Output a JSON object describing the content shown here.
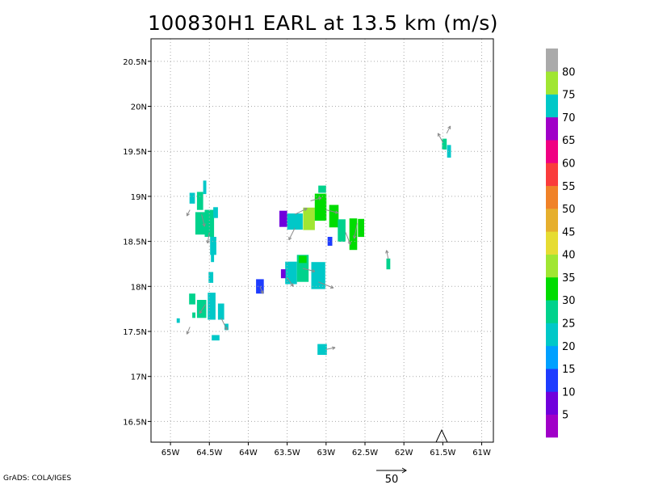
{
  "chart_data": {
    "type": "heatmap",
    "title": "100830H1 EARL at 13.5 km (m/s)",
    "xlim": [
      -65.25,
      -60.85
    ],
    "ylim": [
      16.27,
      20.75
    ],
    "x_ticks": [
      -65,
      -64.5,
      -64,
      -63.5,
      -63,
      -62.5,
      -62,
      -61.5,
      -61
    ],
    "x_tick_labels": [
      "65W",
      "64.5W",
      "64W",
      "63.5W",
      "63W",
      "62.5W",
      "62W",
      "61.5W",
      "61W"
    ],
    "y_ticks": [
      16.5,
      17,
      17.5,
      18,
      18.5,
      19,
      19.5,
      20,
      20.5
    ],
    "y_tick_labels": [
      "16.5N",
      "17N",
      "17.5N",
      "18N",
      "18.5N",
      "19N",
      "19.5N",
      "20N",
      "20.5N"
    ],
    "grid": true,
    "colorbar": {
      "labels": [
        "5",
        "10",
        "15",
        "20",
        "25",
        "30",
        "35",
        "40",
        "45",
        "50",
        "55",
        "60",
        "65",
        "70",
        "75",
        "80"
      ],
      "colors": [
        "#a000c8",
        "#7000dc",
        "#1e3cff",
        "#00a0ff",
        "#00c8c8",
        "#00d28c",
        "#00dc00",
        "#a0e632",
        "#e6dc32",
        "#e6af2d",
        "#f08228",
        "#fa3c3c",
        "#f00082",
        "#a000c8",
        "#00c8c8",
        "#a0e632",
        "#aaaaaa"
      ]
    },
    "cells": [
      {
        "lon": -64.72,
        "lat": 18.98,
        "w": 0.07,
        "h": 0.12,
        "v": 22
      },
      {
        "lon": -64.62,
        "lat": 18.95,
        "w": 0.08,
        "h": 0.2,
        "v": 26
      },
      {
        "lon": -64.62,
        "lat": 18.7,
        "w": 0.12,
        "h": 0.25,
        "v": 28
      },
      {
        "lon": -64.5,
        "lat": 18.7,
        "w": 0.12,
        "h": 0.3,
        "v": 25
      },
      {
        "lon": -64.45,
        "lat": 18.45,
        "w": 0.08,
        "h": 0.2,
        "v": 24
      },
      {
        "lon": -64.42,
        "lat": 18.82,
        "w": 0.06,
        "h": 0.12,
        "v": 20
      },
      {
        "lon": -64.56,
        "lat": 19.1,
        "w": 0.04,
        "h": 0.15,
        "v": 22
      },
      {
        "lon": -64.46,
        "lat": 18.32,
        "w": 0.04,
        "h": 0.1,
        "v": 22
      },
      {
        "lon": -64.72,
        "lat": 17.86,
        "w": 0.08,
        "h": 0.12,
        "v": 28
      },
      {
        "lon": -64.6,
        "lat": 17.75,
        "w": 0.12,
        "h": 0.2,
        "v": 26
      },
      {
        "lon": -64.47,
        "lat": 17.78,
        "w": 0.1,
        "h": 0.3,
        "v": 24
      },
      {
        "lon": -64.35,
        "lat": 17.72,
        "w": 0.08,
        "h": 0.18,
        "v": 20
      },
      {
        "lon": -64.48,
        "lat": 18.1,
        "w": 0.06,
        "h": 0.12,
        "v": 24
      },
      {
        "lon": -64.42,
        "lat": 17.43,
        "w": 0.1,
        "h": 0.06,
        "v": 24
      },
      {
        "lon": -64.28,
        "lat": 17.55,
        "w": 0.05,
        "h": 0.07,
        "v": 22
      },
      {
        "lon": -64.9,
        "lat": 17.62,
        "w": 0.04,
        "h": 0.05,
        "v": 22
      },
      {
        "lon": -64.7,
        "lat": 17.68,
        "w": 0.04,
        "h": 0.06,
        "v": 26
      },
      {
        "lon": -63.55,
        "lat": 18.75,
        "w": 0.1,
        "h": 0.18,
        "v": 8
      },
      {
        "lon": -63.4,
        "lat": 18.72,
        "w": 0.2,
        "h": 0.18,
        "v": 22
      },
      {
        "lon": -63.22,
        "lat": 18.75,
        "w": 0.15,
        "h": 0.25,
        "v": 38
      },
      {
        "lon": -63.07,
        "lat": 18.88,
        "w": 0.15,
        "h": 0.3,
        "v": 34
      },
      {
        "lon": -62.9,
        "lat": 18.78,
        "w": 0.12,
        "h": 0.25,
        "v": 30
      },
      {
        "lon": -62.8,
        "lat": 18.62,
        "w": 0.1,
        "h": 0.25,
        "v": 26
      },
      {
        "lon": -62.65,
        "lat": 18.58,
        "w": 0.1,
        "h": 0.35,
        "v": 34
      },
      {
        "lon": -62.55,
        "lat": 18.65,
        "w": 0.08,
        "h": 0.2,
        "v": 32
      },
      {
        "lon": -62.95,
        "lat": 18.5,
        "w": 0.06,
        "h": 0.1,
        "v": 10
      },
      {
        "lon": -63.05,
        "lat": 19.08,
        "w": 0.1,
        "h": 0.08,
        "v": 28
      },
      {
        "lon": -63.85,
        "lat": 18.0,
        "w": 0.1,
        "h": 0.16,
        "v": 12
      },
      {
        "lon": -63.45,
        "lat": 18.15,
        "w": 0.15,
        "h": 0.25,
        "v": 24
      },
      {
        "lon": -63.3,
        "lat": 18.2,
        "w": 0.15,
        "h": 0.3,
        "v": 26
      },
      {
        "lon": -63.1,
        "lat": 18.12,
        "w": 0.18,
        "h": 0.3,
        "v": 22
      },
      {
        "lon": -63.3,
        "lat": 18.3,
        "w": 0.1,
        "h": 0.08,
        "v": 32
      },
      {
        "lon": -63.55,
        "lat": 18.14,
        "w": 0.06,
        "h": 0.1,
        "v": 8
      },
      {
        "lon": -63.05,
        "lat": 17.3,
        "w": 0.12,
        "h": 0.12,
        "v": 22
      },
      {
        "lon": -62.2,
        "lat": 18.25,
        "w": 0.05,
        "h": 0.12,
        "v": 26
      },
      {
        "lon": -61.48,
        "lat": 19.58,
        "w": 0.06,
        "h": 0.12,
        "v": 25
      },
      {
        "lon": -61.42,
        "lat": 19.5,
        "w": 0.05,
        "h": 0.14,
        "v": 24
      }
    ],
    "vectors": [
      {
        "lon": -64.75,
        "lat": 18.85,
        "u": -5,
        "v": -10
      },
      {
        "lon": -64.6,
        "lat": 18.8,
        "u": 5,
        "v": -20
      },
      {
        "lon": -64.5,
        "lat": 18.6,
        "u": -3,
        "v": -18
      },
      {
        "lon": -64.55,
        "lat": 17.8,
        "u": -10,
        "v": -15
      },
      {
        "lon": -64.35,
        "lat": 17.65,
        "u": 10,
        "v": -20
      },
      {
        "lon": -64.75,
        "lat": 17.55,
        "u": -5,
        "v": -12
      },
      {
        "lon": -63.4,
        "lat": 18.8,
        "u": 20,
        "v": 10
      },
      {
        "lon": -63.2,
        "lat": 18.95,
        "u": 18,
        "v": 5
      },
      {
        "lon": -63.0,
        "lat": 18.85,
        "u": 20,
        "v": -5
      },
      {
        "lon": -62.75,
        "lat": 18.6,
        "u": 8,
        "v": -20
      },
      {
        "lon": -62.6,
        "lat": 18.7,
        "u": -5,
        "v": -25
      },
      {
        "lon": -63.4,
        "lat": 18.65,
        "u": -10,
        "v": -20
      },
      {
        "lon": -63.3,
        "lat": 18.2,
        "u": 20,
        "v": -5
      },
      {
        "lon": -63.1,
        "lat": 18.05,
        "u": 25,
        "v": -10
      },
      {
        "lon": -63.5,
        "lat": 18.1,
        "u": 10,
        "v": -15
      },
      {
        "lon": -63.85,
        "lat": 18.0,
        "u": 5,
        "v": -12
      },
      {
        "lon": -63.0,
        "lat": 17.3,
        "u": 15,
        "v": 3
      },
      {
        "lon": -62.2,
        "lat": 18.3,
        "u": -3,
        "v": 15
      },
      {
        "lon": -61.5,
        "lat": 19.6,
        "u": -8,
        "v": 15
      },
      {
        "lon": -61.45,
        "lat": 19.7,
        "u": 6,
        "v": 12
      }
    ],
    "reference_vector": {
      "label": "50",
      "magnitude": 50
    }
  },
  "credit": "GrADS: COLA/IGES"
}
